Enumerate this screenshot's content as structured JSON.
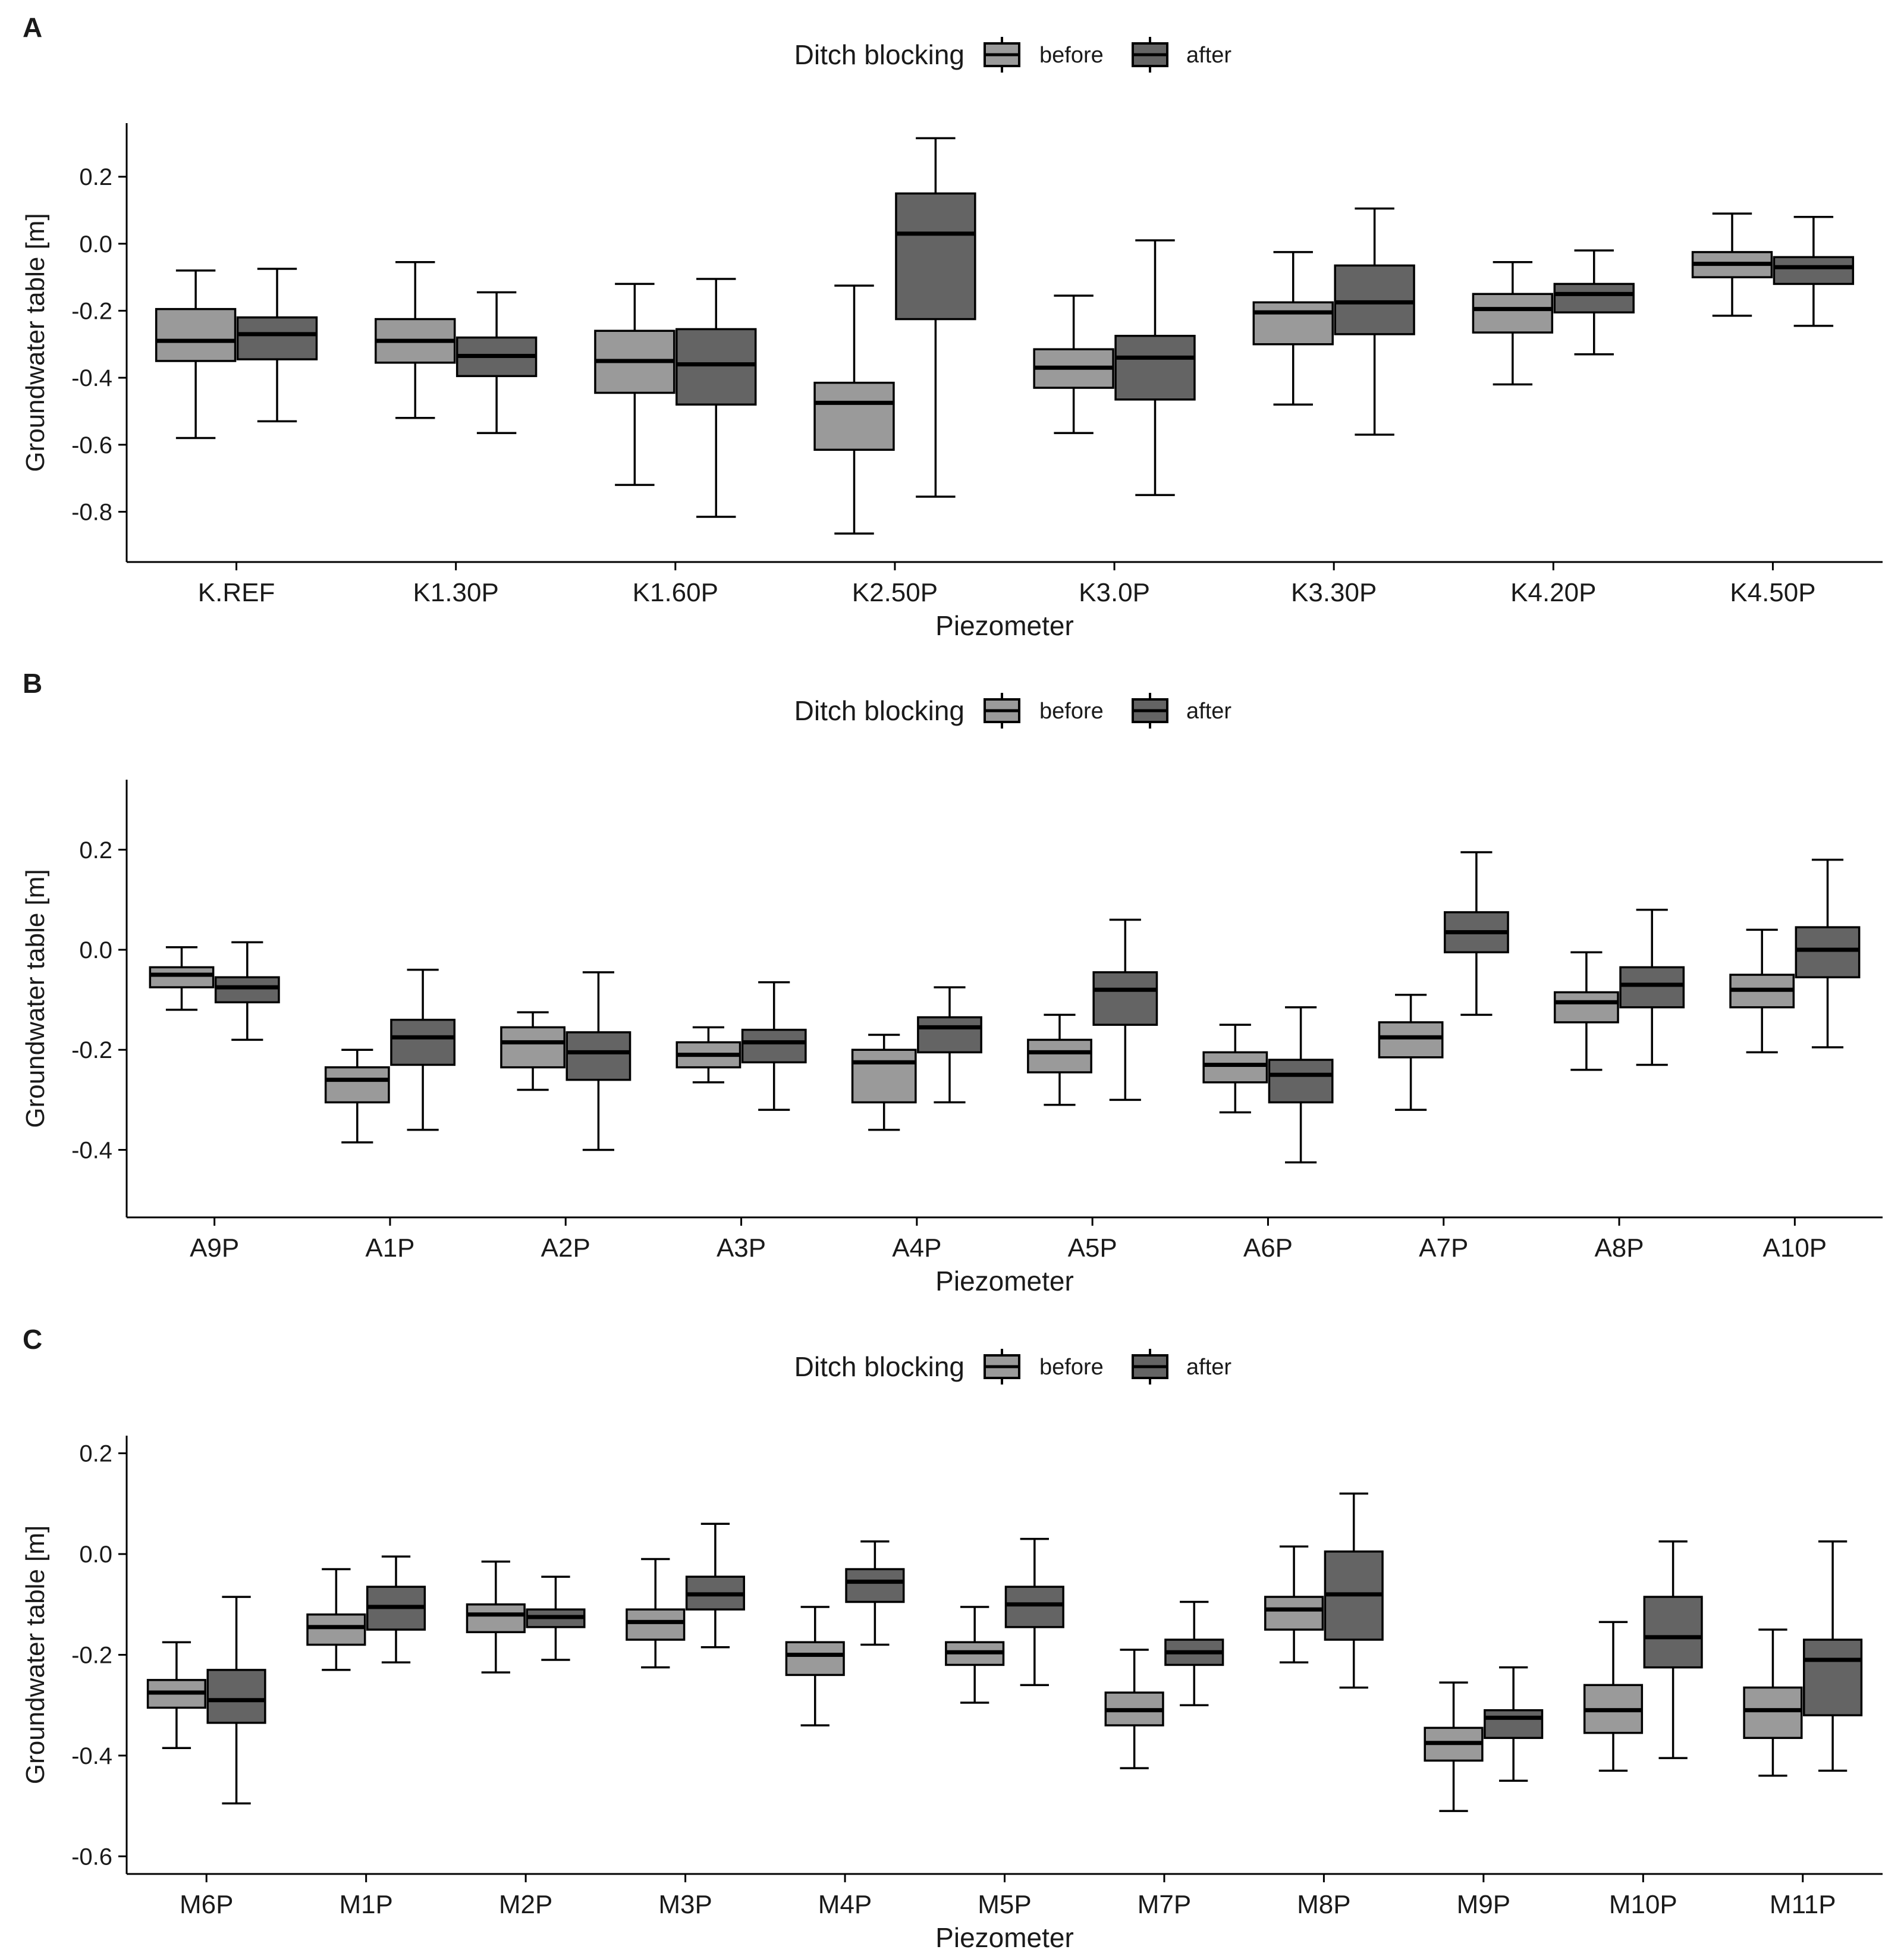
{
  "colors": {
    "before": "#9a9a9a",
    "after": "#646464",
    "line": "#000000",
    "text": "#1a1a1a"
  },
  "legend": {
    "title": "Ditch blocking",
    "items": [
      "before",
      "after"
    ],
    "position": "top-center"
  },
  "chart_data": [
    {
      "panel": "A",
      "type": "boxplot",
      "xlabel": "Piezometer",
      "ylabel": "Groundwater table [m]",
      "yticks": [
        0.2,
        0.0,
        -0.2,
        -0.4,
        -0.6,
        -0.8
      ],
      "ytick_labels": [
        "0.2",
        "0.0",
        "-0.2",
        "-0.4",
        "-0.6",
        "-0.8"
      ],
      "ylim": [
        -0.95,
        0.36
      ],
      "categories": [
        "K.REF",
        "K1.30P",
        "K1.60P",
        "K2.50P",
        "K3.0P",
        "K3.30P",
        "K4.20P",
        "K4.50P"
      ],
      "series": [
        {
          "name": "before",
          "boxes": [
            {
              "min": -0.58,
              "q1": -0.35,
              "median": -0.29,
              "q3": -0.195,
              "max": -0.08
            },
            {
              "min": -0.52,
              "q1": -0.355,
              "median": -0.29,
              "q3": -0.225,
              "max": -0.055
            },
            {
              "min": -0.72,
              "q1": -0.445,
              "median": -0.35,
              "q3": -0.26,
              "max": -0.12
            },
            {
              "min": -0.865,
              "q1": -0.615,
              "median": -0.475,
              "q3": -0.415,
              "max": -0.125
            },
            {
              "min": -0.565,
              "q1": -0.43,
              "median": -0.37,
              "q3": -0.315,
              "max": -0.155
            },
            {
              "min": -0.48,
              "q1": -0.3,
              "median": -0.205,
              "q3": -0.175,
              "max": -0.025
            },
            {
              "min": -0.42,
              "q1": -0.265,
              "median": -0.195,
              "q3": -0.15,
              "max": -0.055
            },
            {
              "min": -0.215,
              "q1": -0.1,
              "median": -0.06,
              "q3": -0.025,
              "max": 0.09
            }
          ]
        },
        {
          "name": "after",
          "boxes": [
            {
              "min": -0.53,
              "q1": -0.345,
              "median": -0.27,
              "q3": -0.22,
              "max": -0.075
            },
            {
              "min": -0.565,
              "q1": -0.395,
              "median": -0.335,
              "q3": -0.28,
              "max": -0.145
            },
            {
              "min": -0.815,
              "q1": -0.48,
              "median": -0.36,
              "q3": -0.255,
              "max": -0.105
            },
            {
              "min": -0.755,
              "q1": -0.225,
              "median": 0.03,
              "q3": 0.15,
              "max": 0.315
            },
            {
              "min": -0.75,
              "q1": -0.465,
              "median": -0.34,
              "q3": -0.275,
              "max": 0.01
            },
            {
              "min": -0.57,
              "q1": -0.27,
              "median": -0.175,
              "q3": -0.065,
              "max": 0.105
            },
            {
              "min": -0.33,
              "q1": -0.205,
              "median": -0.15,
              "q3": -0.12,
              "max": -0.02
            },
            {
              "min": -0.245,
              "q1": -0.12,
              "median": -0.07,
              "q3": -0.04,
              "max": 0.08
            }
          ]
        }
      ]
    },
    {
      "panel": "B",
      "type": "boxplot",
      "xlabel": "Piezometer",
      "ylabel": "Groundwater table [m]",
      "yticks": [
        0.2,
        0.0,
        -0.2,
        -0.4
      ],
      "ytick_labels": [
        "0.2",
        "0.0",
        "-0.2",
        "-0.4"
      ],
      "ylim": [
        -0.535,
        0.34
      ],
      "categories": [
        "A9P",
        "A1P",
        "A2P",
        "A3P",
        "A4P",
        "A5P",
        "A6P",
        "A7P",
        "A8P",
        "A10P"
      ],
      "series": [
        {
          "name": "before",
          "boxes": [
            {
              "min": -0.12,
              "q1": -0.075,
              "median": -0.05,
              "q3": -0.035,
              "max": 0.005
            },
            {
              "min": -0.385,
              "q1": -0.305,
              "median": -0.26,
              "q3": -0.235,
              "max": -0.2
            },
            {
              "min": -0.28,
              "q1": -0.235,
              "median": -0.185,
              "q3": -0.155,
              "max": -0.125
            },
            {
              "min": -0.265,
              "q1": -0.235,
              "median": -0.21,
              "q3": -0.185,
              "max": -0.155
            },
            {
              "min": -0.36,
              "q1": -0.305,
              "median": -0.225,
              "q3": -0.2,
              "max": -0.17
            },
            {
              "min": -0.31,
              "q1": -0.245,
              "median": -0.205,
              "q3": -0.18,
              "max": -0.13
            },
            {
              "min": -0.325,
              "q1": -0.265,
              "median": -0.23,
              "q3": -0.205,
              "max": -0.15
            },
            {
              "min": -0.32,
              "q1": -0.215,
              "median": -0.175,
              "q3": -0.145,
              "max": -0.09
            },
            {
              "min": -0.24,
              "q1": -0.145,
              "median": -0.105,
              "q3": -0.085,
              "max": -0.005
            },
            {
              "min": -0.205,
              "q1": -0.115,
              "median": -0.08,
              "q3": -0.05,
              "max": 0.04
            }
          ]
        },
        {
          "name": "after",
          "boxes": [
            {
              "min": -0.18,
              "q1": -0.105,
              "median": -0.075,
              "q3": -0.055,
              "max": 0.015
            },
            {
              "min": -0.36,
              "q1": -0.23,
              "median": -0.175,
              "q3": -0.14,
              "max": -0.04
            },
            {
              "min": -0.4,
              "q1": -0.26,
              "median": -0.205,
              "q3": -0.165,
              "max": -0.045
            },
            {
              "min": -0.32,
              "q1": -0.225,
              "median": -0.185,
              "q3": -0.16,
              "max": -0.065
            },
            {
              "min": -0.305,
              "q1": -0.205,
              "median": -0.155,
              "q3": -0.135,
              "max": -0.075
            },
            {
              "min": -0.3,
              "q1": -0.15,
              "median": -0.08,
              "q3": -0.045,
              "max": 0.06
            },
            {
              "min": -0.425,
              "q1": -0.305,
              "median": -0.25,
              "q3": -0.22,
              "max": -0.115
            },
            {
              "min": -0.13,
              "q1": -0.005,
              "median": 0.035,
              "q3": 0.075,
              "max": 0.195
            },
            {
              "min": -0.23,
              "q1": -0.115,
              "median": -0.07,
              "q3": -0.035,
              "max": 0.08
            },
            {
              "min": -0.195,
              "q1": -0.055,
              "median": 0.0,
              "q3": 0.045,
              "max": 0.18
            }
          ]
        }
      ]
    },
    {
      "panel": "C",
      "type": "boxplot",
      "xlabel": "Piezometer",
      "ylabel": "Groundwater table [m]",
      "yticks": [
        0.2,
        0.0,
        -0.2,
        -0.4,
        -0.6
      ],
      "ytick_labels": [
        "0.2",
        "0.0",
        "-0.2",
        "-0.4",
        "-0.6"
      ],
      "ylim": [
        -0.635,
        0.235
      ],
      "categories": [
        "M6P",
        "M1P",
        "M2P",
        "M3P",
        "M4P",
        "M5P",
        "M7P",
        "M8P",
        "M9P",
        "M10P",
        "M11P"
      ],
      "series": [
        {
          "name": "before",
          "boxes": [
            {
              "min": -0.385,
              "q1": -0.305,
              "median": -0.275,
              "q3": -0.25,
              "max": -0.175
            },
            {
              "min": -0.23,
              "q1": -0.18,
              "median": -0.145,
              "q3": -0.12,
              "max": -0.03
            },
            {
              "min": -0.235,
              "q1": -0.155,
              "median": -0.12,
              "q3": -0.1,
              "max": -0.015
            },
            {
              "min": -0.225,
              "q1": -0.17,
              "median": -0.135,
              "q3": -0.11,
              "max": -0.01
            },
            {
              "min": -0.34,
              "q1": -0.24,
              "median": -0.2,
              "q3": -0.175,
              "max": -0.105
            },
            {
              "min": -0.295,
              "q1": -0.22,
              "median": -0.195,
              "q3": -0.175,
              "max": -0.105
            },
            {
              "min": -0.425,
              "q1": -0.34,
              "median": -0.31,
              "q3": -0.275,
              "max": -0.19
            },
            {
              "min": -0.215,
              "q1": -0.15,
              "median": -0.11,
              "q3": -0.085,
              "max": 0.015
            },
            {
              "min": -0.51,
              "q1": -0.41,
              "median": -0.375,
              "q3": -0.345,
              "max": -0.255
            },
            {
              "min": -0.43,
              "q1": -0.355,
              "median": -0.31,
              "q3": -0.26,
              "max": -0.135
            },
            {
              "min": -0.44,
              "q1": -0.365,
              "median": -0.31,
              "q3": -0.265,
              "max": -0.15
            }
          ]
        },
        {
          "name": "after",
          "boxes": [
            {
              "min": -0.495,
              "q1": -0.335,
              "median": -0.29,
              "q3": -0.23,
              "max": -0.085
            },
            {
              "min": -0.215,
              "q1": -0.15,
              "median": -0.105,
              "q3": -0.065,
              "max": -0.005
            },
            {
              "min": -0.21,
              "q1": -0.145,
              "median": -0.125,
              "q3": -0.11,
              "max": -0.045
            },
            {
              "min": -0.185,
              "q1": -0.11,
              "median": -0.08,
              "q3": -0.045,
              "max": 0.06
            },
            {
              "min": -0.18,
              "q1": -0.095,
              "median": -0.055,
              "q3": -0.03,
              "max": 0.025
            },
            {
              "min": -0.26,
              "q1": -0.145,
              "median": -0.1,
              "q3": -0.065,
              "max": 0.03
            },
            {
              "min": -0.3,
              "q1": -0.22,
              "median": -0.195,
              "q3": -0.17,
              "max": -0.095
            },
            {
              "min": -0.265,
              "q1": -0.17,
              "median": -0.08,
              "q3": 0.005,
              "max": 0.12
            },
            {
              "min": -0.45,
              "q1": -0.365,
              "median": -0.325,
              "q3": -0.31,
              "max": -0.225
            },
            {
              "min": -0.405,
              "q1": -0.225,
              "median": -0.165,
              "q3": -0.085,
              "max": 0.025
            },
            {
              "min": -0.43,
              "q1": -0.32,
              "median": -0.21,
              "q3": -0.17,
              "max": 0.025
            }
          ]
        }
      ]
    }
  ]
}
